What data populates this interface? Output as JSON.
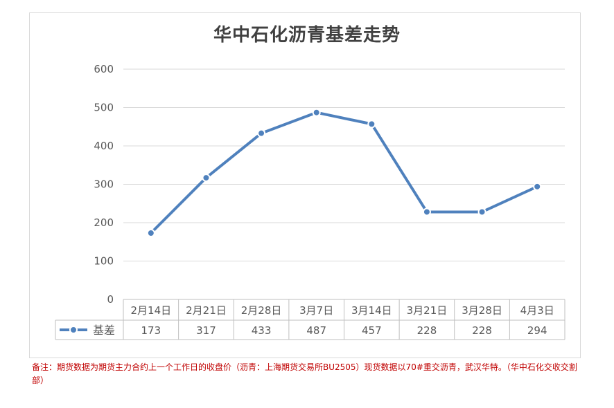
{
  "chart_data": {
    "type": "line",
    "title": "华中石化沥青基差走势",
    "categories": [
      "2月14日",
      "2月21日",
      "2月28日",
      "3月7日",
      "3月14日",
      "3月21日",
      "3月28日",
      "4月3日"
    ],
    "series": [
      {
        "name": "基差",
        "values": [
          173,
          317,
          433,
          487,
          457,
          228,
          228,
          294
        ]
      }
    ],
    "ylim": [
      0,
      600
    ],
    "yticks": [
      "0",
      "100",
      "200",
      "300",
      "400",
      "500",
      "600"
    ],
    "grid": true,
    "data_table": true,
    "line_color": "#4f81bd"
  },
  "footnote": "备注：期货数据为期货主力合约上一个工作日的收盘价（沥青：上海期货交易所BU2505）现货数据以70#重交沥青，武汉华特。（华中石化交收交割部）"
}
